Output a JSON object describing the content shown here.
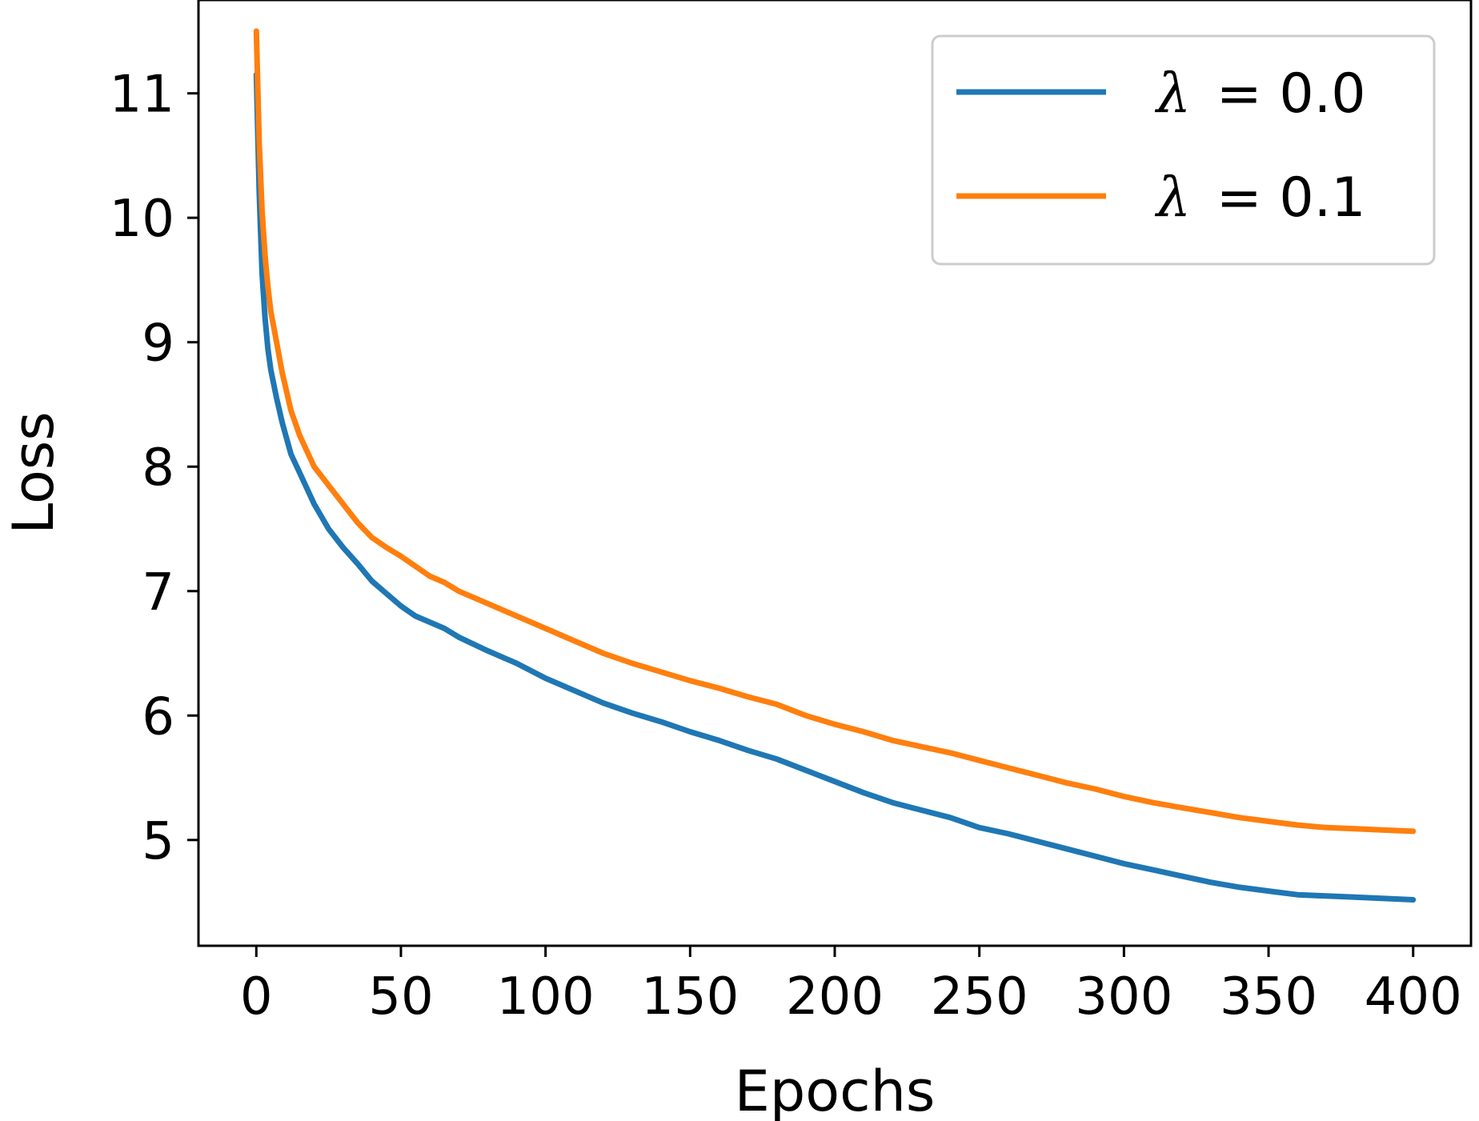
{
  "chart_data": {
    "type": "line",
    "title": "",
    "xlabel": "Epochs",
    "ylabel": "Loss",
    "xlim": [
      -20,
      420
    ],
    "ylim": [
      4.15,
      11.75
    ],
    "xticks": [
      0,
      50,
      100,
      150,
      200,
      250,
      300,
      350,
      400
    ],
    "yticks": [
      5,
      6,
      7,
      8,
      9,
      10,
      11
    ],
    "grid": false,
    "legend_position": "top-right",
    "legend": [
      {
        "label_symbol": "λ",
        "label_text": "= 0.0",
        "color": "#1f77b4"
      },
      {
        "label_symbol": "λ",
        "label_text": "= 0.1",
        "color": "#ff7f0e"
      }
    ],
    "series": [
      {
        "name": "λ = 0.0",
        "color": "#1f77b4",
        "x": [
          0,
          1,
          2,
          3,
          4,
          5,
          7,
          9,
          12,
          15,
          20,
          25,
          30,
          35,
          40,
          45,
          50,
          55,
          60,
          65,
          70,
          80,
          90,
          100,
          110,
          120,
          130,
          140,
          150,
          160,
          170,
          180,
          190,
          200,
          210,
          220,
          230,
          240,
          250,
          260,
          270,
          280,
          290,
          300,
          310,
          320,
          330,
          340,
          350,
          360,
          370,
          380,
          390,
          400
        ],
        "y": [
          11.15,
          10.2,
          9.55,
          9.2,
          8.95,
          8.78,
          8.55,
          8.35,
          8.1,
          7.95,
          7.7,
          7.5,
          7.35,
          7.22,
          7.08,
          6.98,
          6.88,
          6.8,
          6.75,
          6.7,
          6.63,
          6.52,
          6.42,
          6.3,
          6.2,
          6.1,
          6.02,
          5.95,
          5.87,
          5.8,
          5.72,
          5.65,
          5.56,
          5.47,
          5.38,
          5.3,
          5.24,
          5.18,
          5.1,
          5.05,
          4.99,
          4.93,
          4.87,
          4.81,
          4.76,
          4.71,
          4.66,
          4.62,
          4.59,
          4.56,
          4.55,
          4.54,
          4.53,
          4.52
        ]
      },
      {
        "name": "λ = 0.1",
        "color": "#ff7f0e",
        "x": [
          0,
          1,
          2,
          3,
          4,
          5,
          7,
          9,
          12,
          15,
          20,
          25,
          30,
          35,
          40,
          45,
          50,
          55,
          60,
          65,
          70,
          80,
          90,
          100,
          110,
          120,
          130,
          140,
          150,
          160,
          170,
          180,
          190,
          200,
          210,
          220,
          230,
          240,
          250,
          260,
          270,
          280,
          290,
          300,
          310,
          320,
          330,
          340,
          350,
          360,
          370,
          380,
          390,
          400
        ],
        "y": [
          11.5,
          10.6,
          10.05,
          9.7,
          9.45,
          9.25,
          9.0,
          8.75,
          8.45,
          8.25,
          8.0,
          7.85,
          7.7,
          7.55,
          7.43,
          7.35,
          7.28,
          7.2,
          7.12,
          7.07,
          7.0,
          6.9,
          6.8,
          6.7,
          6.6,
          6.5,
          6.42,
          6.35,
          6.28,
          6.22,
          6.15,
          6.09,
          6.0,
          5.93,
          5.87,
          5.8,
          5.75,
          5.7,
          5.64,
          5.58,
          5.52,
          5.46,
          5.41,
          5.35,
          5.3,
          5.26,
          5.22,
          5.18,
          5.15,
          5.12,
          5.1,
          5.09,
          5.08,
          5.07
        ]
      }
    ]
  }
}
